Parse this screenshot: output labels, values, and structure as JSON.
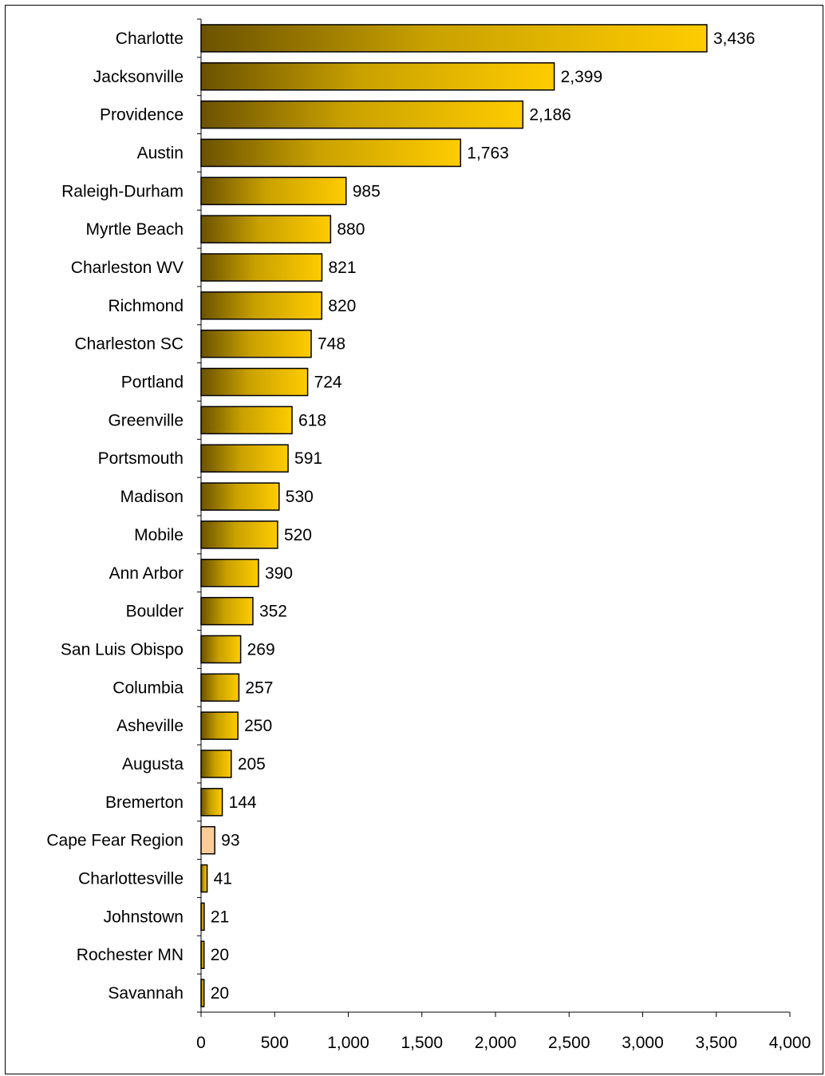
{
  "chart_data": {
    "type": "bar",
    "orientation": "horizontal",
    "title": "",
    "xlabel": "",
    "ylabel": "",
    "categories": [
      "Charlotte",
      "Jacksonville",
      "Providence",
      "Austin",
      "Raleigh-Durham",
      "Myrtle Beach",
      "Charleston WV",
      "Richmond",
      "Charleston SC",
      "Portland",
      "Greenville",
      "Portsmouth",
      "Madison",
      "Mobile",
      "Ann Arbor",
      "Boulder",
      "San Luis Obispo",
      "Columbia",
      "Asheville",
      "Augusta",
      "Bremerton",
      "Cape Fear Region",
      "Charlottesville",
      "Johnstown",
      "Rochester MN",
      "Savannah"
    ],
    "values": [
      3436,
      2399,
      2186,
      1763,
      985,
      880,
      821,
      820,
      748,
      724,
      618,
      591,
      530,
      520,
      390,
      352,
      269,
      257,
      250,
      205,
      144,
      93,
      41,
      21,
      20,
      20
    ],
    "value_labels": [
      "3,436",
      "2,399",
      "2,186",
      "1,763",
      "985",
      "880",
      "821",
      "820",
      "748",
      "724",
      "618",
      "591",
      "530",
      "520",
      "390",
      "352",
      "269",
      "257",
      "250",
      "205",
      "144",
      "93",
      "41",
      "21",
      "20",
      "20"
    ],
    "highlight_category": "Cape Fear Region",
    "xlim": [
      0,
      4000
    ],
    "xticks": [
      0,
      500,
      1000,
      1500,
      2000,
      2500,
      3000,
      3500,
      4000
    ],
    "xtick_labels": [
      "0",
      "500",
      "1,000",
      "1,500",
      "2,000",
      "2,500",
      "3,000",
      "3,500",
      "4,000"
    ],
    "grid": false,
    "legend": "none",
    "colors": {
      "gradient_dark": "#6b5200",
      "gradient_mid": "#c9a100",
      "gradient_light": "#ffcc00",
      "highlight": "#ffcc99",
      "bar_stroke": "#000000",
      "axis": "#000000"
    }
  }
}
